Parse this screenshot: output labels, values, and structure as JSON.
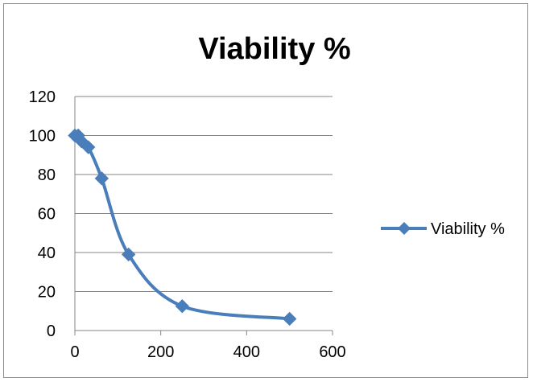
{
  "chart_data": {
    "type": "line",
    "title": "Viability %",
    "xlabel": "",
    "ylabel": "",
    "xlim": [
      0,
      600
    ],
    "ylim": [
      0,
      120
    ],
    "xticks": [
      0,
      200,
      400,
      600
    ],
    "yticks": [
      0,
      20,
      40,
      60,
      80,
      100,
      120
    ],
    "grid": true,
    "legend_position": "right",
    "smooth": true,
    "series": [
      {
        "name": "Viability %",
        "color": "#4a7ebb",
        "marker": "diamond",
        "x": [
          0,
          7.8,
          15.6,
          31.25,
          62.5,
          125,
          250,
          500
        ],
        "y": [
          100,
          100,
          97,
          94,
          78,
          39,
          12.5,
          6
        ]
      }
    ]
  }
}
